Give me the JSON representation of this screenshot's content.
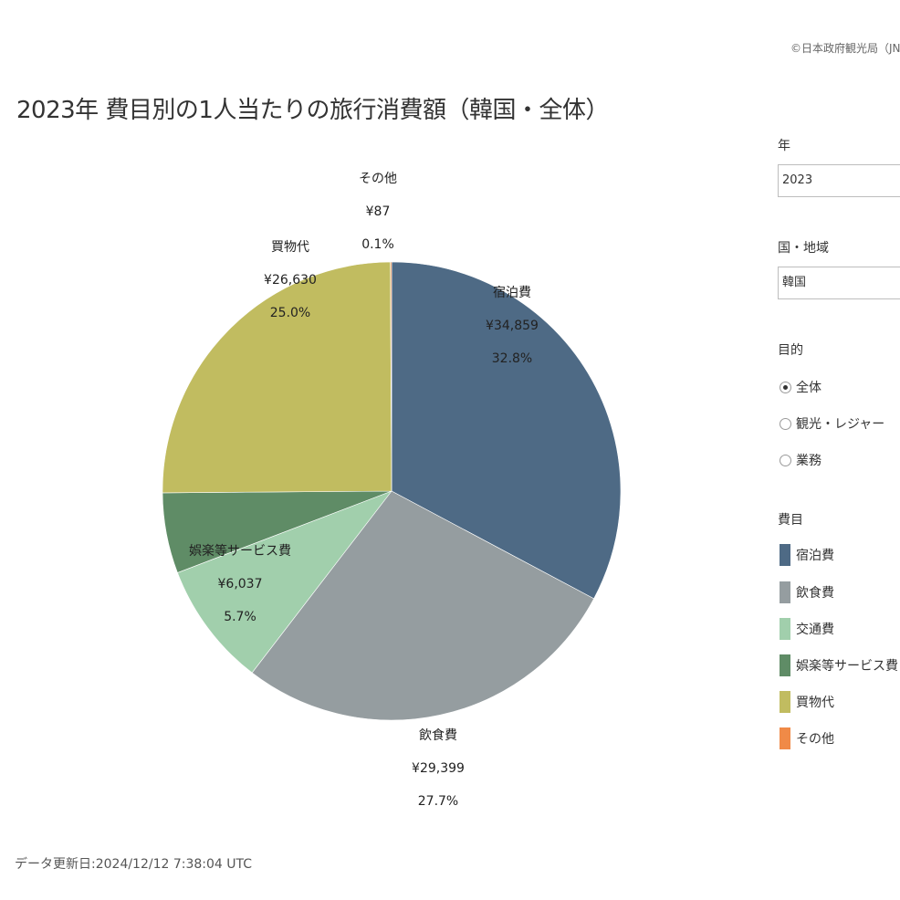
{
  "copyright": "©日本政府観光局（JNTO）",
  "title": "2023年 費目別の1人当たりの旅行消費額（韓国・全体）",
  "footer": "データ更新日:2024/12/12 7:38:04 UTC",
  "filters": {
    "year_label": "年",
    "year_value": "2023",
    "country_label": "国・地域",
    "country_value": "韓国",
    "purpose_label": "目的",
    "purpose_options": [
      "全体",
      "観光・レジャー",
      "業務"
    ],
    "purpose_selected": "全体"
  },
  "legend": {
    "title": "費目",
    "items": [
      "宿泊費",
      "飲食費",
      "交通費",
      "娯楽等サービス費",
      "買物代",
      "その他"
    ]
  },
  "colors": {
    "宿泊費": "#4e6a85",
    "飲食費": "#959da0",
    "交通費": "#a1cfac",
    "娯楽等サービス費": "#5f8c66",
    "買物代": "#c1bc60",
    "その他": "#f08a47"
  },
  "chart_data": {
    "type": "pie",
    "title": "2023年 費目別の1人当たりの旅行消費額（韓国・全体）",
    "slices": [
      {
        "name": "宿泊費",
        "value": 34859,
        "value_label": "¥34,859",
        "percent_label": "32.8%",
        "label_visible": true
      },
      {
        "name": "飲食費",
        "value": 29399,
        "value_label": "¥29,399",
        "percent_label": "27.7%",
        "label_visible": true
      },
      {
        "name": "交通費",
        "value": 9332,
        "value_label": "",
        "percent_label": "",
        "label_visible": false
      },
      {
        "name": "娯楽等サービス費",
        "value": 6037,
        "value_label": "¥6,037",
        "percent_label": "5.7%",
        "label_visible": true
      },
      {
        "name": "買物代",
        "value": 26630,
        "value_label": "¥26,630",
        "percent_label": "25.0%",
        "label_visible": true
      },
      {
        "name": "その他",
        "value": 87,
        "value_label": "¥87",
        "percent_label": "0.1%",
        "label_visible": true
      }
    ],
    "legend_position": "right"
  }
}
